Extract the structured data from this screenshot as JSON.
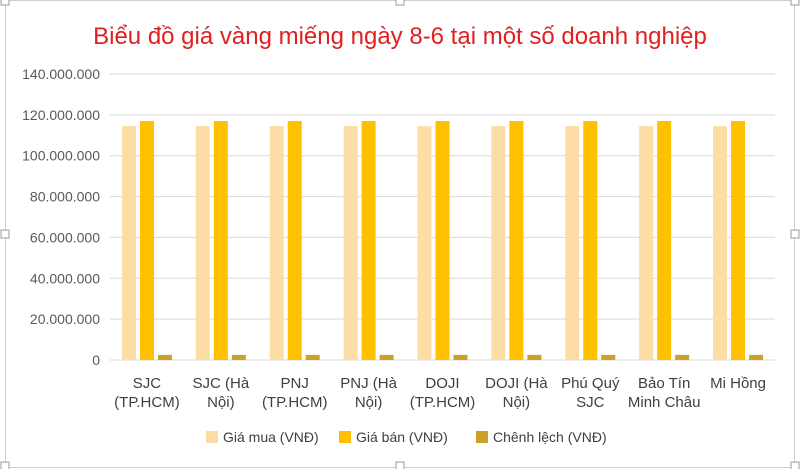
{
  "chart_data": {
    "type": "bar",
    "title": "Biểu đồ giá vàng miếng ngày 8-6 tại một số doanh nghiệp",
    "categories": [
      [
        "SJC",
        "(TP.HCM)"
      ],
      [
        "SJC (Hà",
        "Nội)"
      ],
      [
        "PNJ",
        "(TP.HCM)"
      ],
      [
        "PNJ (Hà",
        "Nội)"
      ],
      [
        "DOJI",
        "(TP.HCM)"
      ],
      [
        "DOJI (Hà",
        "Nội)"
      ],
      [
        "Phú Quý",
        "SJC"
      ],
      [
        "Bảo Tín",
        "Minh Châu"
      ],
      [
        "Mi Hồng"
      ]
    ],
    "series": [
      {
        "name": "Giá mua (VNĐ)",
        "color": "#FDDDA6",
        "values": [
          114500000,
          114500000,
          114500000,
          114500000,
          114500000,
          114500000,
          114500000,
          114500000,
          114500000
        ]
      },
      {
        "name": "Giá bán (VNĐ)",
        "color": "#FFC000",
        "values": [
          117000000,
          117000000,
          117000000,
          117000000,
          117000000,
          117000000,
          117000000,
          117000000,
          117000000
        ]
      },
      {
        "name": "Chênh lệch (VNĐ)",
        "color": "#C9A227",
        "values": [
          2500000,
          2500000,
          2500000,
          2500000,
          2500000,
          2500000,
          2500000,
          2500000,
          2500000
        ]
      }
    ],
    "yticks": [
      "0",
      "20.000.000",
      "40.000.000",
      "60.000.000",
      "80.000.000",
      "100.000.000",
      "120.000.000",
      "140.000.000"
    ],
    "ylim": [
      0,
      140000000
    ],
    "grid": true,
    "legend": "bottom",
    "title_color": "#E02020"
  }
}
